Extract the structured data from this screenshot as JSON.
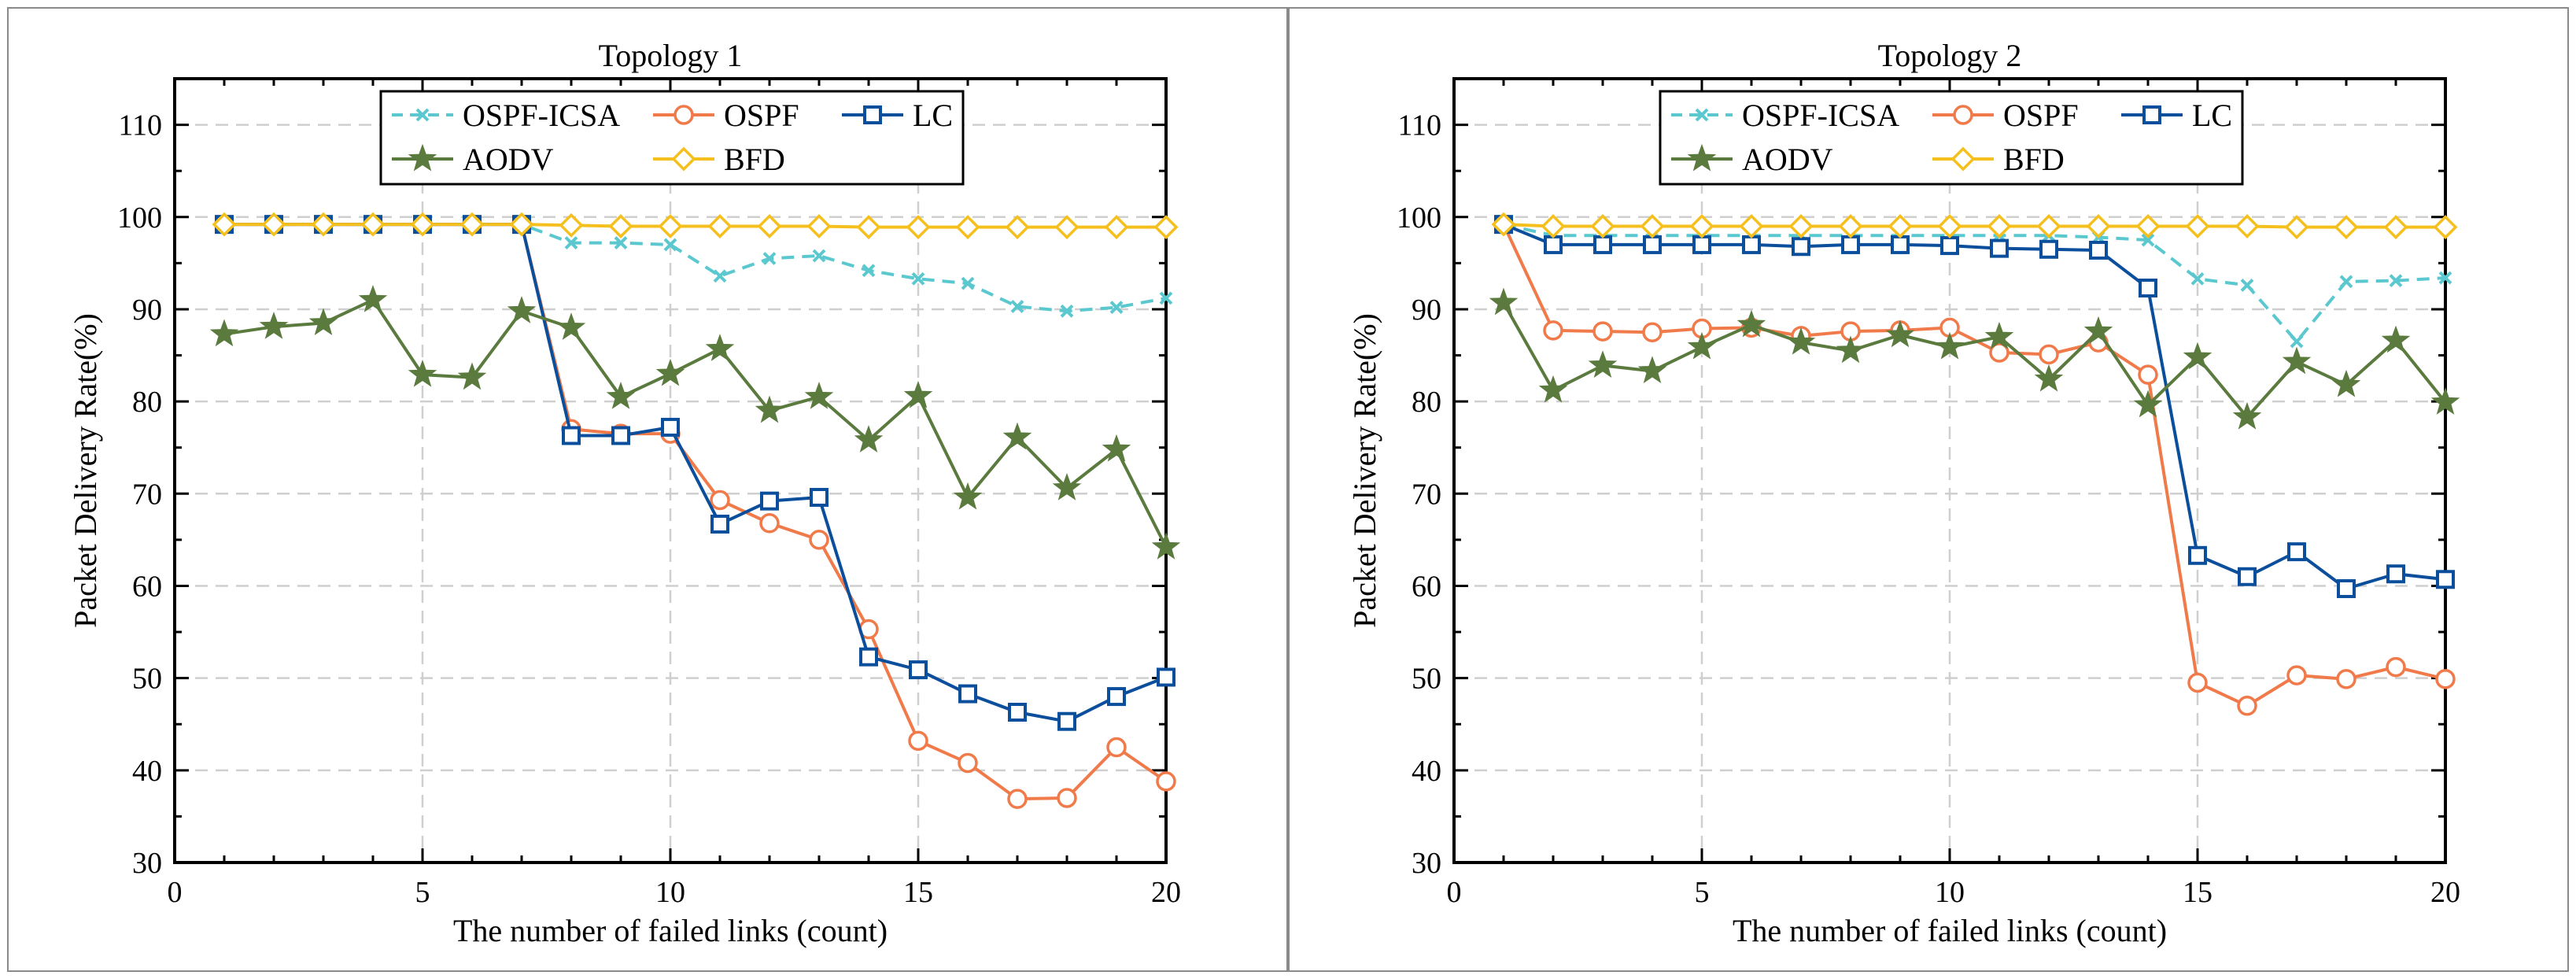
{
  "chart_data": [
    {
      "type": "line",
      "title": "Topology 1",
      "xlabel": "The number of failed links (count)",
      "ylabel": "Packet Delivery Rate(%)",
      "xlim": [
        0,
        20
      ],
      "ylim": [
        30,
        115
      ],
      "xticks": [
        0,
        5,
        10,
        15,
        20
      ],
      "yticks": [
        30,
        40,
        50,
        60,
        70,
        80,
        90,
        100,
        110
      ],
      "grid": true,
      "legend_position": "top-center",
      "x": [
        1,
        2,
        3,
        4,
        5,
        6,
        7,
        8,
        9,
        10,
        11,
        12,
        13,
        14,
        15,
        16,
        17,
        18,
        19,
        20
      ],
      "series": [
        {
          "name": "OSPF-ICSA",
          "color": "#5bc8d0",
          "marker": "x",
          "dash": "dashed",
          "values": [
            99.2,
            99.2,
            99.2,
            99.2,
            99.2,
            99.2,
            99.2,
            97.2,
            97.2,
            97.0,
            93.6,
            95.5,
            95.8,
            94.2,
            93.3,
            92.8,
            90.3,
            89.8,
            90.2,
            91.2
          ]
        },
        {
          "name": "OSPF",
          "color": "#f07a4a",
          "marker": "circle",
          "dash": "solid",
          "values": [
            99.2,
            99.2,
            99.2,
            99.2,
            99.2,
            99.2,
            99.2,
            77.0,
            76.5,
            76.5,
            69.3,
            66.8,
            65.0,
            55.3,
            43.2,
            40.8,
            36.9,
            37.0,
            42.5,
            38.8
          ]
        },
        {
          "name": "LC",
          "color": "#0b4f9c",
          "marker": "square",
          "dash": "solid",
          "values": [
            99.2,
            99.2,
            99.2,
            99.2,
            99.2,
            99.2,
            99.2,
            76.3,
            76.3,
            77.2,
            66.7,
            69.2,
            69.6,
            52.3,
            50.9,
            48.3,
            46.3,
            45.3,
            48.0,
            50.1
          ]
        },
        {
          "name": "AODV",
          "color": "#5a7a3e",
          "marker": "star",
          "dash": "solid",
          "values": [
            87.3,
            88.1,
            88.5,
            91.0,
            82.9,
            82.6,
            89.8,
            88.0,
            80.5,
            83.0,
            85.7,
            79.0,
            80.5,
            75.8,
            80.6,
            69.6,
            76.1,
            70.6,
            74.8,
            64.2
          ]
        },
        {
          "name": "BFD",
          "color": "#f5c01e",
          "marker": "diamond",
          "dash": "solid",
          "values": [
            99.2,
            99.2,
            99.2,
            99.2,
            99.2,
            99.2,
            99.2,
            99.1,
            99.0,
            99.0,
            99.0,
            99.0,
            99.0,
            98.9,
            98.9,
            98.9,
            98.9,
            98.9,
            98.9,
            98.9
          ]
        }
      ]
    },
    {
      "type": "line",
      "title": "Topology 2",
      "xlabel": "The number of failed links (count)",
      "ylabel": "Packet Delivery Rate(%)",
      "xlim": [
        0,
        20
      ],
      "ylim": [
        30,
        115
      ],
      "xticks": [
        0,
        5,
        10,
        15,
        20
      ],
      "yticks": [
        30,
        40,
        50,
        60,
        70,
        80,
        90,
        100,
        110
      ],
      "grid": true,
      "legend_position": "top-center",
      "x": [
        1,
        2,
        3,
        4,
        5,
        6,
        7,
        8,
        9,
        10,
        11,
        12,
        13,
        14,
        15,
        16,
        17,
        18,
        19,
        20
      ],
      "series": [
        {
          "name": "OSPF-ICSA",
          "color": "#5bc8d0",
          "marker": "x",
          "dash": "dashed",
          "values": [
            99.2,
            98.0,
            98.0,
            98.0,
            98.0,
            98.0,
            98.0,
            98.0,
            98.0,
            98.0,
            98.0,
            98.0,
            97.8,
            97.5,
            93.3,
            92.6,
            86.5,
            93.0,
            93.1,
            93.4
          ]
        },
        {
          "name": "OSPF",
          "color": "#f07a4a",
          "marker": "circle",
          "dash": "solid",
          "values": [
            99.2,
            87.7,
            87.6,
            87.5,
            87.9,
            88.0,
            87.1,
            87.6,
            87.7,
            88.0,
            85.3,
            85.1,
            86.4,
            82.9,
            49.5,
            47.0,
            50.3,
            49.9,
            51.2,
            49.9
          ]
        },
        {
          "name": "LC",
          "color": "#0b4f9c",
          "marker": "square",
          "dash": "solid",
          "values": [
            99.2,
            97.0,
            97.0,
            97.0,
            97.0,
            97.0,
            96.8,
            97.0,
            97.0,
            96.9,
            96.6,
            96.5,
            96.4,
            92.3,
            63.3,
            61.0,
            63.7,
            59.7,
            61.3,
            60.7
          ]
        },
        {
          "name": "AODV",
          "color": "#5a7a3e",
          "marker": "star",
          "dash": "solid",
          "values": [
            90.7,
            81.2,
            83.9,
            83.3,
            85.9,
            88.3,
            86.4,
            85.5,
            87.2,
            85.9,
            87.0,
            82.4,
            87.6,
            79.6,
            84.8,
            78.3,
            84.3,
            81.8,
            86.6,
            79.9
          ]
        },
        {
          "name": "BFD",
          "color": "#f5c01e",
          "marker": "diamond",
          "dash": "solid",
          "values": [
            99.2,
            99.0,
            99.0,
            99.0,
            99.0,
            99.0,
            99.0,
            99.0,
            99.0,
            99.0,
            99.0,
            99.0,
            99.0,
            99.0,
            99.0,
            99.0,
            98.9,
            98.9,
            98.9,
            98.9
          ]
        }
      ]
    }
  ]
}
